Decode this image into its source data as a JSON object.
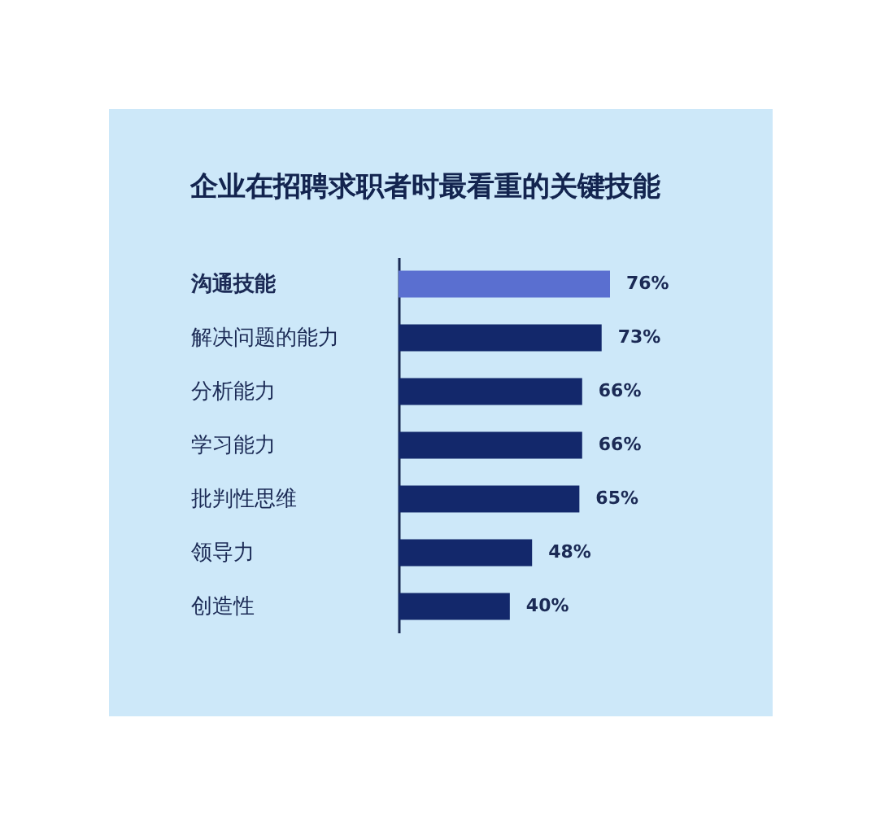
{
  "chart_data": {
    "type": "bar",
    "orientation": "horizontal",
    "title": "企业在招聘求职者时最看重的关键技能",
    "categories": [
      "沟通技能",
      "解决问题的能力",
      "分析能力",
      "学习能力",
      "批判性思维",
      "领导力",
      "创造性"
    ],
    "values": [
      76,
      73,
      66,
      66,
      65,
      48,
      40
    ],
    "value_labels": [
      "76%",
      "73%",
      "66%",
      "66%",
      "65%",
      "48%",
      "40%"
    ],
    "colors": [
      "#5a6fd0",
      "#13286b",
      "#13286b",
      "#13286b",
      "#13286b",
      "#13286b",
      "#13286b"
    ]
  }
}
